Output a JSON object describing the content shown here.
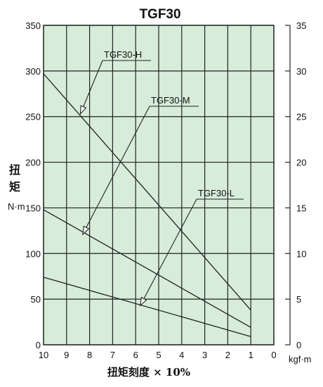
{
  "chart_data": {
    "type": "line",
    "title": "TGF30",
    "xlabel": "扭矩刻度 × 10%",
    "ylabel_line1": "扭",
    "ylabel_line2": "矩",
    "ylabel_unit": "N·m",
    "y2label_unit": "kgf·m",
    "x_ticks": [
      "10",
      "9",
      "8",
      "7",
      "6",
      "5",
      "4",
      "3",
      "2",
      "1",
      "0"
    ],
    "xlim": [
      10,
      0
    ],
    "ylim": [
      0,
      350
    ],
    "y_ticks": [
      "0",
      "50",
      "100",
      "150",
      "200",
      "250",
      "300",
      "350"
    ],
    "y2lim": [
      0,
      35
    ],
    "y2_ticks": [
      "0",
      "5",
      "10",
      "15",
      "20",
      "25",
      "30",
      "35"
    ],
    "grid": true,
    "plot_background": "#d7ecd9",
    "line_color": "#222222",
    "series": [
      {
        "name": "TGF30-H",
        "x": [
          10,
          1
        ],
        "y": [
          297,
          38
        ],
        "callout_target": [
          8.4,
          253
        ]
      },
      {
        "name": "TGF30-M",
        "x": [
          10,
          1
        ],
        "y": [
          148,
          19
        ],
        "callout_target": [
          8.3,
          121
        ]
      },
      {
        "name": "TGF30-L",
        "x": [
          10,
          1
        ],
        "y": [
          74,
          9
        ],
        "callout_target": [
          5.8,
          43
        ]
      }
    ]
  }
}
